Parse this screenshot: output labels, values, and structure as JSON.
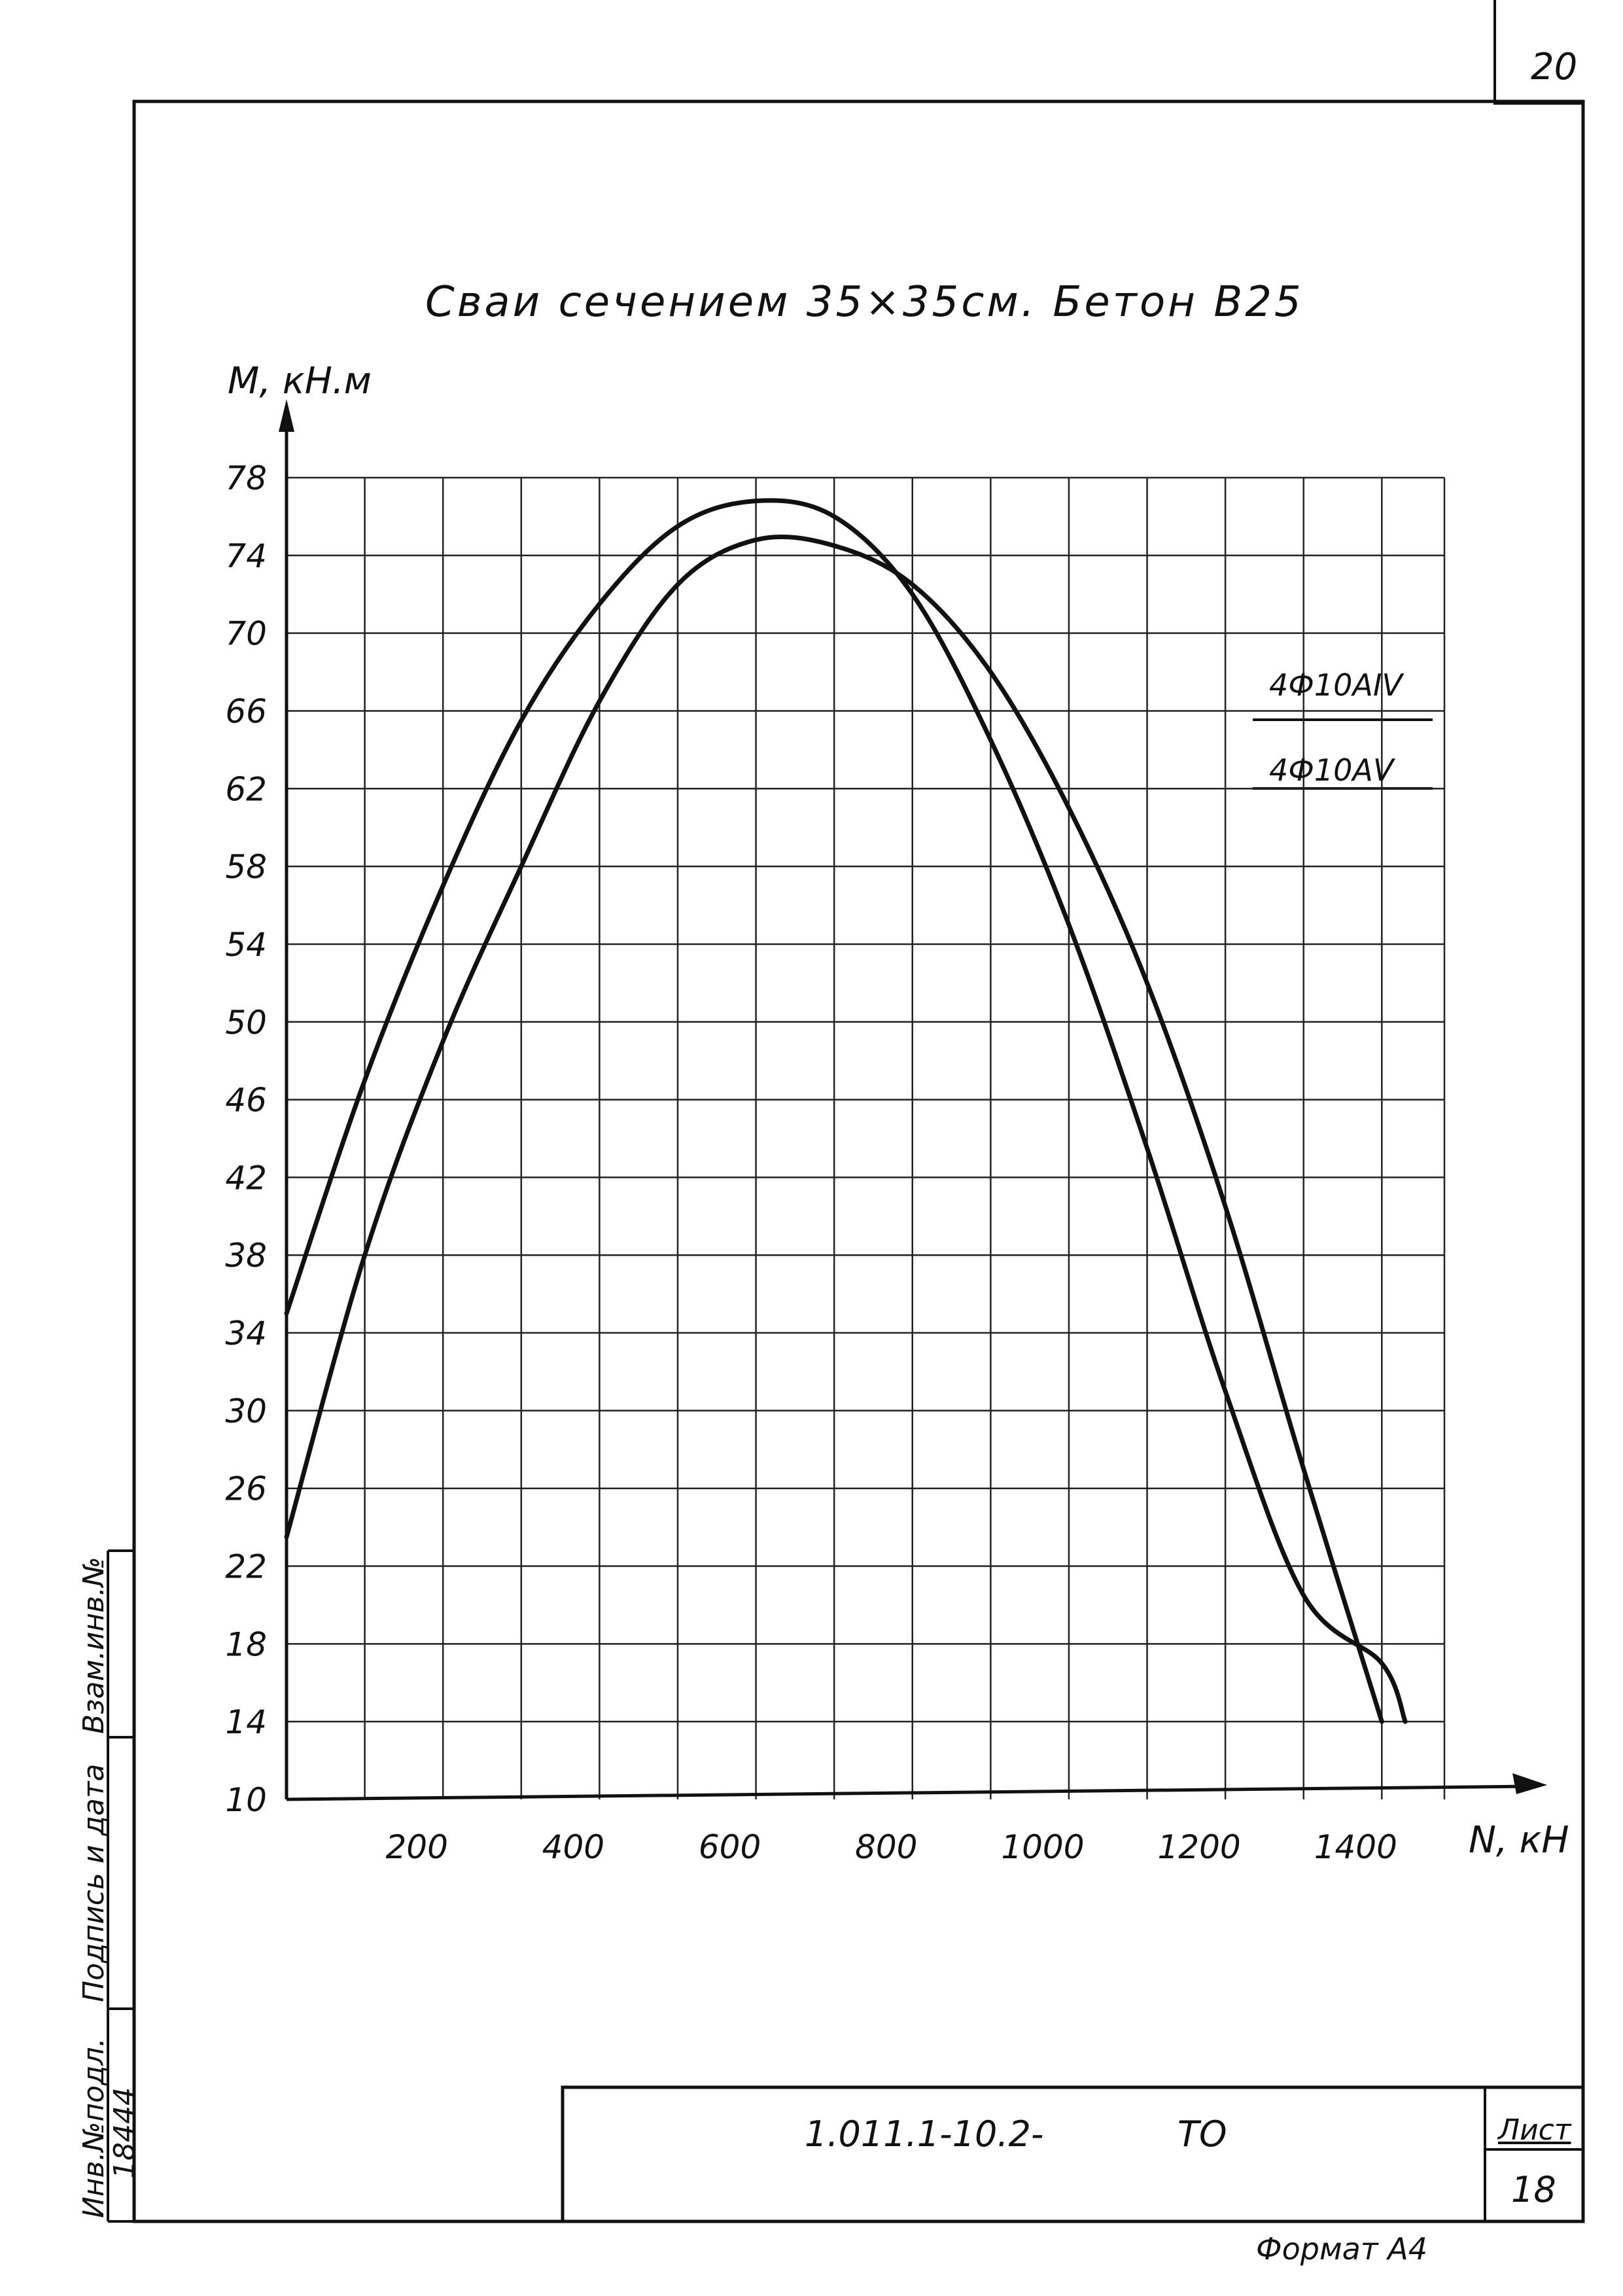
{
  "page_number": "20",
  "chart_data": {
    "type": "line",
    "title": "Сваи сечением 35×35см. Бетон В25",
    "ylabel": "M, кН.м",
    "xlabel": "N, кН",
    "xlim": [
      0,
      1480
    ],
    "ylim": [
      10,
      78
    ],
    "x_ticks": [
      200,
      400,
      600,
      800,
      1000,
      1200,
      1400
    ],
    "x_tick_labels": [
      "200",
      "400",
      "600",
      "800",
      "1000",
      "1200",
      "1400"
    ],
    "y_ticks": [
      10,
      14,
      18,
      22,
      26,
      30,
      34,
      38,
      42,
      46,
      50,
      54,
      58,
      62,
      66,
      70,
      74,
      78
    ],
    "y_tick_labels": [
      "10",
      "14",
      "18",
      "22",
      "26",
      "30",
      "34",
      "38",
      "42",
      "46",
      "50",
      "54",
      "58",
      "62",
      "66",
      "70",
      "74",
      "78"
    ],
    "grid": true,
    "legend_position": "right",
    "series": [
      {
        "name": "4Ф10АIV",
        "x": [
          0,
          100,
          200,
          300,
          400,
          500,
          600,
          700,
          800,
          900,
          1000,
          1100,
          1200,
          1300,
          1400,
          1430
        ],
        "y": [
          35,
          47,
          57,
          65.5,
          71.5,
          75.5,
          76.8,
          76,
          72,
          64.5,
          55,
          43.5,
          31,
          20.5,
          17,
          14
        ]
      },
      {
        "name": "4Ф10АV",
        "x": [
          0,
          100,
          200,
          300,
          400,
          500,
          600,
          700,
          800,
          900,
          1000,
          1100,
          1200,
          1300,
          1400
        ],
        "y": [
          23.5,
          38,
          49,
          58,
          66.5,
          72.5,
          74.8,
          74.5,
          72.5,
          68,
          61,
          52,
          40.5,
          27,
          14
        ]
      }
    ]
  },
  "side_stamp": {
    "inv_original": "Инв.№подл.",
    "signature_date": "Подпись и дата",
    "replacement_inv": "Взам.инв.№",
    "inv_value": "18444"
  },
  "title_block": {
    "code": "1.011.1-10.2-",
    "doc_type": "ТО",
    "sheet_label": "Лист",
    "sheet_number": "18"
  },
  "format_label": "Формат А4"
}
